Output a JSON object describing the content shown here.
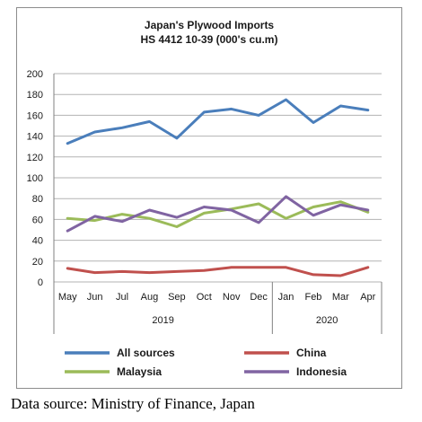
{
  "chart_data": {
    "type": "line",
    "title": "Japan's Plywood Imports",
    "subtitle": "HS 4412 10-39  (000's cu.m)",
    "categories": [
      "May",
      "Jun",
      "Jul",
      "Aug",
      "Sep",
      "Oct",
      "Nov",
      "Dec",
      "Jan",
      "Feb",
      "Mar",
      "Apr"
    ],
    "year_groups": [
      {
        "label": "2019",
        "from": 0,
        "to": 7
      },
      {
        "label": "2020",
        "from": 8,
        "to": 11
      }
    ],
    "ylim": [
      0,
      200
    ],
    "yticks": [
      0,
      20,
      40,
      60,
      80,
      100,
      120,
      140,
      160,
      180,
      200
    ],
    "grid": true,
    "legend_position": "bottom",
    "series": [
      {
        "name": "All sources",
        "color": "#4a7ebb",
        "values": [
          133,
          144,
          148,
          154,
          138,
          163,
          166,
          160,
          175,
          153,
          169,
          165
        ]
      },
      {
        "name": "China",
        "color": "#c0504d",
        "values": [
          13,
          9,
          10,
          9,
          10,
          11,
          14,
          14,
          14,
          7,
          6,
          14
        ]
      },
      {
        "name": "Malaysia",
        "color": "#9bbb59",
        "values": [
          61,
          59,
          65,
          61,
          53,
          66,
          70,
          75,
          61,
          72,
          77,
          67
        ]
      },
      {
        "name": "Indonesia",
        "color": "#8064a2",
        "values": [
          49,
          63,
          58,
          69,
          62,
          72,
          69,
          57,
          82,
          64,
          74,
          69
        ]
      }
    ]
  },
  "footer": {
    "source": "Data source: Ministry of Finance, Japan"
  }
}
